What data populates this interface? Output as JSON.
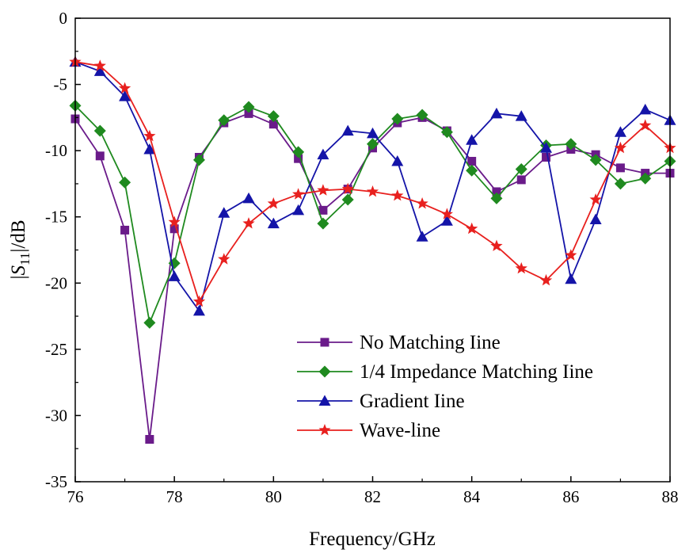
{
  "chart_data": {
    "type": "line",
    "xlabel": "Frequency/GHz",
    "ylabel_parts": {
      "prefix": "|",
      "symbol": "S",
      "subscript": "11",
      "suffix": "|/dB"
    },
    "xlim": [
      76,
      88
    ],
    "ylim": [
      -35,
      0
    ],
    "xticks": [
      76,
      78,
      80,
      82,
      84,
      86,
      88
    ],
    "yticks": [
      0,
      -5,
      -10,
      -15,
      -20,
      -25,
      -30,
      -35
    ],
    "grid": false,
    "legend_position": "lower-right",
    "x": [
      76,
      76.5,
      77,
      77.5,
      78,
      78.5,
      79,
      79.5,
      80,
      80.5,
      81,
      81.5,
      82,
      82.5,
      83,
      83.5,
      84,
      84.5,
      85,
      85.5,
      86,
      86.5,
      87,
      87.5,
      88
    ],
    "series": [
      {
        "name": "No Matching Iine",
        "color": "#6A1B8A",
        "marker": "square",
        "values": [
          -7.6,
          -10.4,
          -16.0,
          -31.8,
          -15.9,
          -10.5,
          -7.9,
          -7.2,
          -8.0,
          -10.6,
          -14.5,
          -12.9,
          -9.8,
          -7.9,
          -7.5,
          -8.5,
          -10.8,
          -13.1,
          -12.2,
          -10.5,
          -9.9,
          -10.3,
          -11.3,
          -11.7,
          -11.7
        ]
      },
      {
        "name": "1/4 Impedance Matching Iine",
        "color": "#1F8A1F",
        "marker": "diamond",
        "values": [
          -6.6,
          -8.5,
          -12.4,
          -23.0,
          -18.5,
          -10.7,
          -7.7,
          -6.7,
          -7.4,
          -10.1,
          -15.5,
          -13.7,
          -9.5,
          -7.6,
          -7.3,
          -8.6,
          -11.5,
          -13.6,
          -11.4,
          -9.6,
          -9.5,
          -10.7,
          -12.5,
          -12.1,
          -10.8
        ]
      },
      {
        "name": "Gradient Iine",
        "color": "#1414A8",
        "marker": "triangle",
        "values": [
          -3.3,
          -4.0,
          -5.9,
          -9.9,
          -19.5,
          -22.1,
          -14.7,
          -13.6,
          -15.5,
          -14.5,
          -10.3,
          -8.5,
          -8.7,
          -10.8,
          -16.5,
          -15.3,
          -9.2,
          -7.2,
          -7.4,
          -9.8,
          -19.7,
          -15.2,
          -8.6,
          -6.9,
          -7.7
        ]
      },
      {
        "name": "Wave-line",
        "color": "#E8201E",
        "marker": "star",
        "values": [
          -3.3,
          -3.6,
          -5.3,
          -8.9,
          -15.4,
          -21.4,
          -18.2,
          -15.5,
          -14.0,
          -13.3,
          -13.0,
          -12.9,
          -13.1,
          -13.4,
          -14.0,
          -14.8,
          -15.9,
          -17.2,
          -18.9,
          -19.8,
          -17.9,
          -13.7,
          -9.8,
          -8.1,
          -9.8
        ]
      }
    ]
  }
}
